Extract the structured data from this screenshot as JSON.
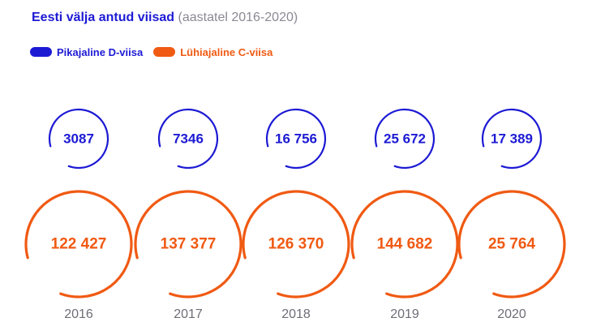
{
  "chart_data": {
    "type": "bubble-ring",
    "title": "Eesti välja antud viisad",
    "subtitle": "(aastatel 2016-2020)",
    "categories": [
      "2016",
      "2017",
      "2018",
      "2019",
      "2020"
    ],
    "series": [
      {
        "name": "Pikajaline D-viisa",
        "color": "#1d1ad4",
        "values": [
          3087,
          7346,
          16756,
          25672,
          17389
        ],
        "labels": [
          "3087",
          "7346",
          "16 756",
          "25 672",
          "17 389"
        ]
      },
      {
        "name": "Lühiajaline C-viisa",
        "color": "#f05a13",
        "values": [
          122427,
          137377,
          126370,
          144682,
          25764
        ],
        "labels": [
          "122 427",
          "137 377",
          "126 370",
          "144 682",
          "25 764"
        ]
      }
    ],
    "year_color": "#6d6d78"
  }
}
